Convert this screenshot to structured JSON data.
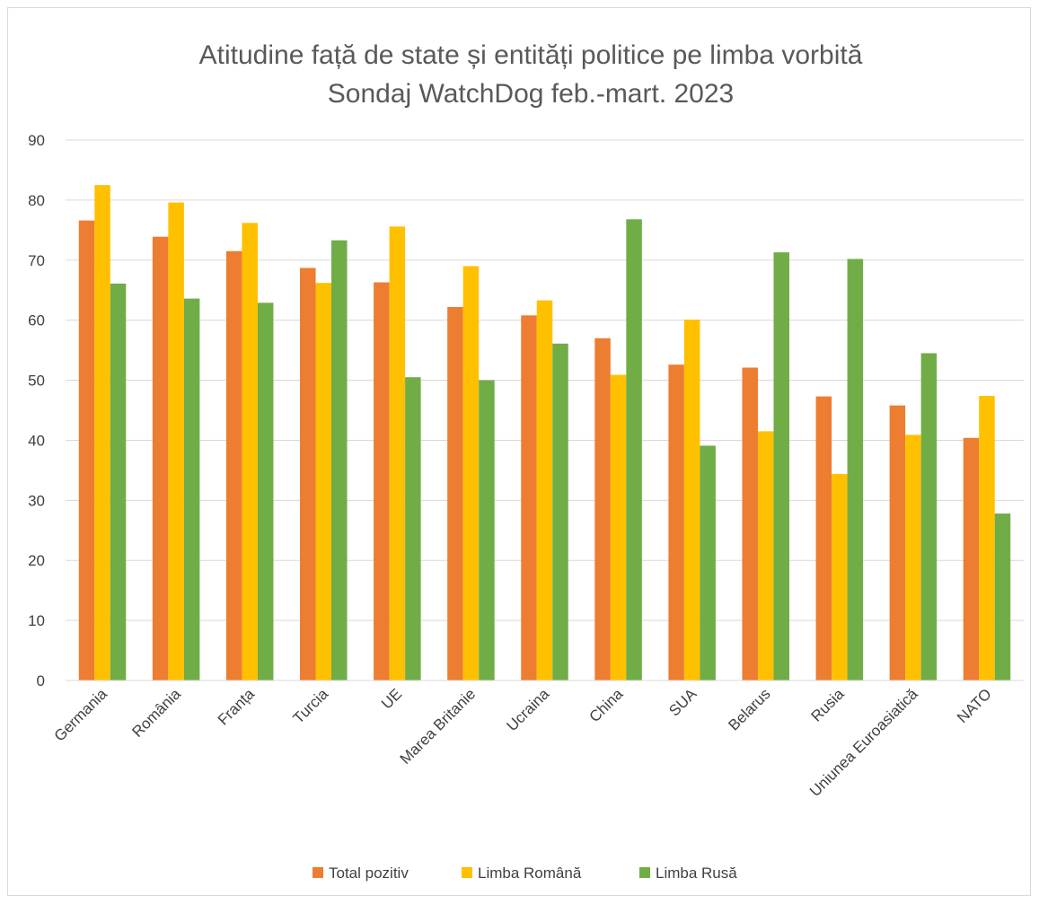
{
  "chart_data": {
    "type": "bar",
    "title": "Atitudine față de state și entități politice  pe limba vorbită",
    "subtitle": "Sondaj  WatchDog feb.-mart. 2023",
    "xlabel": "",
    "ylabel": "",
    "ylim": [
      0,
      90
    ],
    "yticks": [
      0,
      10,
      20,
      30,
      40,
      50,
      60,
      70,
      80,
      90
    ],
    "grid": true,
    "legend_position": "bottom",
    "categories": [
      "Germania",
      "România",
      "Franța",
      "Turcia",
      "UE",
      "Marea Britanie",
      "Ucraina",
      "China",
      "SUA",
      "Belarus",
      "Rusia",
      "Uniunea Euroasiatică",
      "NATO"
    ],
    "series": [
      {
        "name": "Total pozitiv",
        "color": "#ED7D31",
        "values": [
          76.6,
          73.9,
          71.5,
          68.7,
          66.3,
          62.2,
          60.8,
          57.0,
          52.6,
          52.1,
          47.3,
          45.8,
          40.4
        ]
      },
      {
        "name": "Limba Română",
        "color": "#FFC000",
        "values": [
          82.5,
          79.6,
          76.2,
          66.2,
          75.6,
          69.0,
          63.3,
          50.9,
          60.1,
          41.5,
          34.4,
          40.9,
          47.4
        ]
      },
      {
        "name": "Limba Rusă",
        "color": "#70AD47",
        "values": [
          66.1,
          63.6,
          62.9,
          73.3,
          50.5,
          50.0,
          56.1,
          76.8,
          39.1,
          71.3,
          70.2,
          54.5,
          27.8
        ]
      }
    ]
  }
}
